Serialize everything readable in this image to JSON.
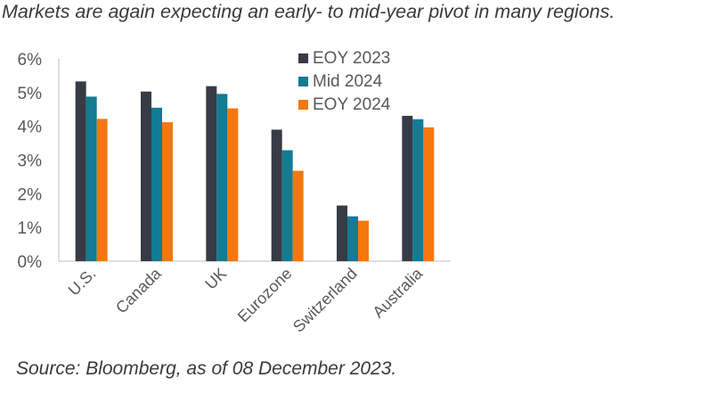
{
  "headline": "Markets are again expecting an early- to mid-year pivot in many regions.",
  "source": "Source: Bloomberg, as of 08 December 2023.",
  "chart_data": {
    "type": "bar",
    "title": "",
    "xlabel": "",
    "ylabel": "",
    "ylim": [
      0,
      6
    ],
    "yticks": [
      "0%",
      "1%",
      "2%",
      "3%",
      "4%",
      "5%",
      "6%"
    ],
    "grid": false,
    "legend_position": "top-right",
    "categories": [
      "U.S.",
      "Canada",
      "UK",
      "Eurozone",
      "Switzerland",
      "Australia"
    ],
    "series": [
      {
        "name": "EOY 2023",
        "color": "#373b45",
        "values": [
          5.33,
          5.03,
          5.19,
          3.9,
          1.65,
          4.31
        ]
      },
      {
        "name": "Mid 2024",
        "color": "#137b94",
        "values": [
          4.88,
          4.55,
          4.96,
          3.29,
          1.33,
          4.21
        ]
      },
      {
        "name": "EOY 2024",
        "color": "#f4770f",
        "values": [
          4.22,
          4.12,
          4.53,
          2.68,
          1.2,
          3.97
        ]
      }
    ]
  }
}
